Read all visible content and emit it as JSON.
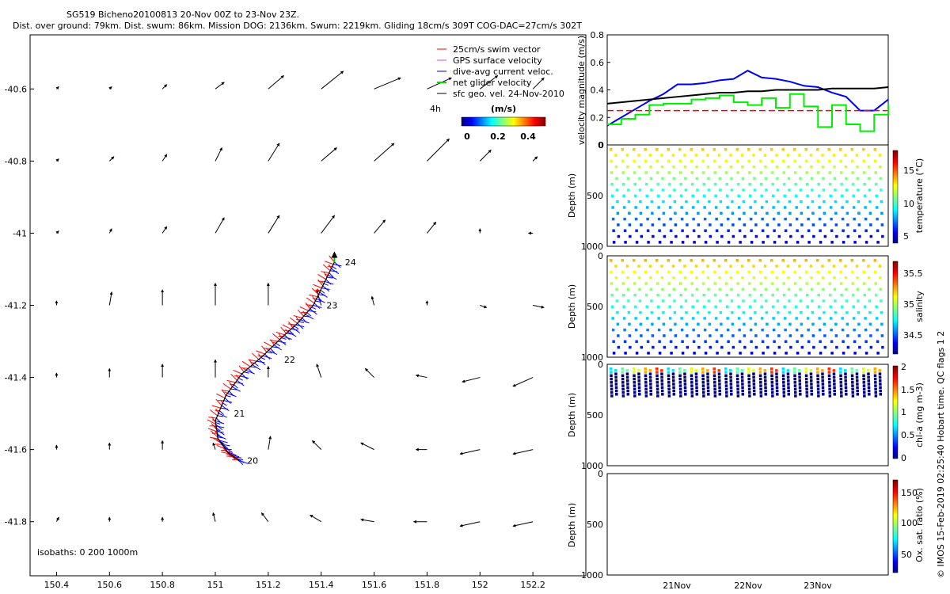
{
  "header": {
    "line1": "SG519 Bicheno20100813 20-Nov 00Z to 23-Nov 23Z.",
    "line2": "Dist. over ground: 79km. Dist. swum: 86km. Mission DOG: 2136km. Swum: 2219km. Gliding 18cm/s 309T COG-DAC=27cm/s 302T"
  },
  "credit": "© IMOS 15-Feb-2019 02:25:40 Hobart time. QC flags 1  2",
  "map": {
    "legend": [
      {
        "label": "25cm/s swim vector",
        "color": "#ff0000"
      },
      {
        "label": "GPS surface velocity",
        "color": "#cc44ff"
      },
      {
        "label": "dive-avg current veloc.",
        "color": "#0000ff"
      },
      {
        "label": "net glider velocity",
        "color": "#00dd00"
      },
      {
        "label": "sfc geo. vel. 24-Nov-2010",
        "color": "#000000"
      }
    ],
    "legend_4h": "4h",
    "colorbar_title": "(m/s)",
    "colorbar_ticks": [
      "0",
      "0.2",
      "0.4"
    ],
    "isobaths_label": "isobaths: 0   200   1000m",
    "x_ticks": [
      "150.4",
      "150.6",
      "150.8",
      "151",
      "151.2",
      "151.4",
      "151.6",
      "151.8",
      "152",
      "152.2"
    ],
    "y_ticks": [
      "-40.6",
      "-40.8",
      "-41",
      "-41.2",
      "-41.4",
      "-41.6",
      "-41.8"
    ],
    "day_labels": [
      "20",
      "21",
      "22",
      "23",
      "24"
    ]
  },
  "panels": {
    "velocity": {
      "ylabel": "velocity magnitude (m/s)",
      "ticks": [
        "0",
        "0.2",
        "0.4",
        "0.6",
        "0.8"
      ]
    },
    "temperature": {
      "ylabel": "Depth (m)",
      "cblabel": "temperature (°C)",
      "ticks": [
        "0",
        "500",
        "1000"
      ],
      "cbticks": [
        "5",
        "10",
        "15"
      ]
    },
    "salinity": {
      "ylabel": "Depth (m)",
      "cblabel": "salinity",
      "ticks": [
        "0",
        "500",
        "1000"
      ],
      "cbticks": [
        "34.5",
        "35",
        "35.5"
      ]
    },
    "chla": {
      "ylabel": "Depth (m)",
      "cblabel": "chl-a (mg m-3)",
      "ticks": [
        "0",
        "500",
        "1000"
      ],
      "cbticks": [
        "0",
        "0.5",
        "1",
        "1.5",
        "2"
      ]
    },
    "oxygen": {
      "ylabel": "Depth (m)",
      "cblabel": "Ox. sat. ratio (%)",
      "ticks": [
        "0",
        "500",
        "1000"
      ],
      "cbticks": [
        "50",
        "100",
        "150"
      ]
    }
  },
  "time_ticks": [
    "21Nov",
    "22Nov",
    "23Nov"
  ],
  "chart_data": [
    {
      "type": "scatter",
      "title": "SG519 Bicheno20100813 20-Nov 00Z to 23-Nov 23Z.",
      "xlabel": "",
      "ylabel": "",
      "xlim": [
        150.3,
        152.4
      ],
      "ylim": [
        -41.95,
        -40.45
      ],
      "track": [
        [
          151.09,
          -41.63
        ],
        [
          151.05,
          -41.61
        ],
        [
          151.01,
          -41.57
        ],
        [
          151.0,
          -41.52
        ],
        [
          151.04,
          -41.45
        ],
        [
          151.1,
          -41.39
        ],
        [
          151.18,
          -41.34
        ],
        [
          151.25,
          -41.29
        ],
        [
          151.31,
          -41.25
        ],
        [
          151.37,
          -41.2
        ],
        [
          151.41,
          -41.14
        ],
        [
          151.45,
          -41.08
        ]
      ],
      "day_marks": [
        {
          "label": "20",
          "lon": 151.12,
          "lat": -41.63
        },
        {
          "label": "21",
          "lon": 151.07,
          "lat": -41.5
        },
        {
          "label": "22",
          "lon": 151.26,
          "lat": -41.35
        },
        {
          "label": "23",
          "lon": 151.42,
          "lat": -41.2
        },
        {
          "label": "24",
          "lon": 151.49,
          "lat": -41.08
        }
      ],
      "vector_grid": {
        "lons": [
          150.4,
          150.6,
          150.8,
          151.0,
          151.2,
          151.4,
          151.6,
          151.8,
          152.0,
          152.2
        ],
        "lats": [
          -40.6,
          -40.8,
          -41.0,
          -41.2,
          -41.4,
          -41.6,
          -41.8
        ],
        "u": [
          [
            0.01,
            0.01,
            0.02,
            0.04,
            0.07,
            0.1,
            0.12,
            0.11,
            0.08,
            0.05
          ],
          [
            0.01,
            0.02,
            0.02,
            0.03,
            0.05,
            0.07,
            0.09,
            0.1,
            0.05,
            0.02
          ],
          [
            0.01,
            0.01,
            0.02,
            0.04,
            0.05,
            0.06,
            0.05,
            0.04,
            0.0,
            -0.02
          ],
          [
            0.0,
            0.01,
            0.0,
            0.0,
            0.0,
            -0.02,
            -0.01,
            0.0,
            0.03,
            0.05
          ],
          [
            0.0,
            0.0,
            0.0,
            0.0,
            0.0,
            -0.02,
            -0.04,
            -0.05,
            -0.08,
            -0.09
          ],
          [
            0.0,
            0.0,
            0.0,
            -0.01,
            0.01,
            -0.04,
            -0.06,
            -0.05,
            -0.09,
            -0.09
          ],
          [
            0.01,
            0.0,
            0.0,
            -0.01,
            -0.03,
            -0.05,
            -0.06,
            -0.06,
            -0.09,
            -0.09
          ]
        ],
        "v": [
          [
            0.01,
            0.01,
            0.02,
            0.03,
            0.06,
            0.08,
            0.05,
            0.05,
            0.06,
            0.05
          ],
          [
            0.01,
            0.02,
            0.03,
            0.06,
            0.08,
            0.06,
            0.08,
            0.1,
            0.05,
            0.02
          ],
          [
            0.01,
            0.02,
            0.03,
            0.07,
            0.08,
            0.08,
            0.06,
            0.05,
            0.02,
            0.0
          ],
          [
            0.02,
            0.06,
            0.07,
            0.1,
            0.1,
            0.07,
            0.04,
            0.02,
            -0.01,
            -0.01
          ],
          [
            0.02,
            0.04,
            0.06,
            0.08,
            0.05,
            0.06,
            0.04,
            0.01,
            -0.02,
            -0.04
          ],
          [
            0.02,
            0.03,
            0.04,
            0.03,
            0.06,
            0.04,
            0.03,
            0.0,
            -0.02,
            -0.02
          ],
          [
            0.02,
            0.02,
            0.02,
            0.04,
            0.04,
            0.03,
            0.01,
            0.0,
            -0.02,
            -0.02
          ]
        ]
      }
    },
    {
      "type": "line",
      "ylabel": "velocity magnitude (m/s)",
      "xlim": [
        20.0,
        24.0
      ],
      "ylim": [
        0,
        0.8
      ],
      "x": [
        20.0,
        20.2,
        20.4,
        20.6,
        20.8,
        21.0,
        21.2,
        21.4,
        21.6,
        21.8,
        22.0,
        22.2,
        22.4,
        22.6,
        22.8,
        23.0,
        23.2,
        23.4,
        23.6,
        23.8,
        24.0
      ],
      "series": [
        {
          "color": "#0000ff",
          "values": [
            0.14,
            0.2,
            0.26,
            0.32,
            0.37,
            0.44,
            0.44,
            0.45,
            0.47,
            0.48,
            0.54,
            0.49,
            0.48,
            0.46,
            0.43,
            0.42,
            0.38,
            0.35,
            0.25,
            0.25,
            0.33
          ]
        },
        {
          "color": "#000000",
          "values": [
            0.3,
            0.31,
            0.32,
            0.33,
            0.34,
            0.35,
            0.36,
            0.37,
            0.38,
            0.38,
            0.39,
            0.39,
            0.4,
            0.4,
            0.4,
            0.4,
            0.41,
            0.41,
            0.41,
            0.41,
            0.42
          ]
        },
        {
          "color": "#ff0000",
          "values": [
            0.25,
            0.25,
            0.25,
            0.25,
            0.25,
            0.25,
            0.25,
            0.25,
            0.25,
            0.25,
            0.25,
            0.25,
            0.25,
            0.25,
            0.25,
            0.25,
            0.25,
            0.25,
            0.25,
            0.25,
            0.25
          ]
        },
        {
          "color": "#00ee00",
          "values": [
            0.15,
            0.19,
            0.22,
            0.29,
            0.3,
            0.3,
            0.33,
            0.34,
            0.36,
            0.31,
            0.29,
            0.34,
            0.27,
            0.37,
            0.28,
            0.13,
            0.29,
            0.15,
            0.1,
            0.22,
            0.3
          ]
        }
      ]
    }
  ]
}
